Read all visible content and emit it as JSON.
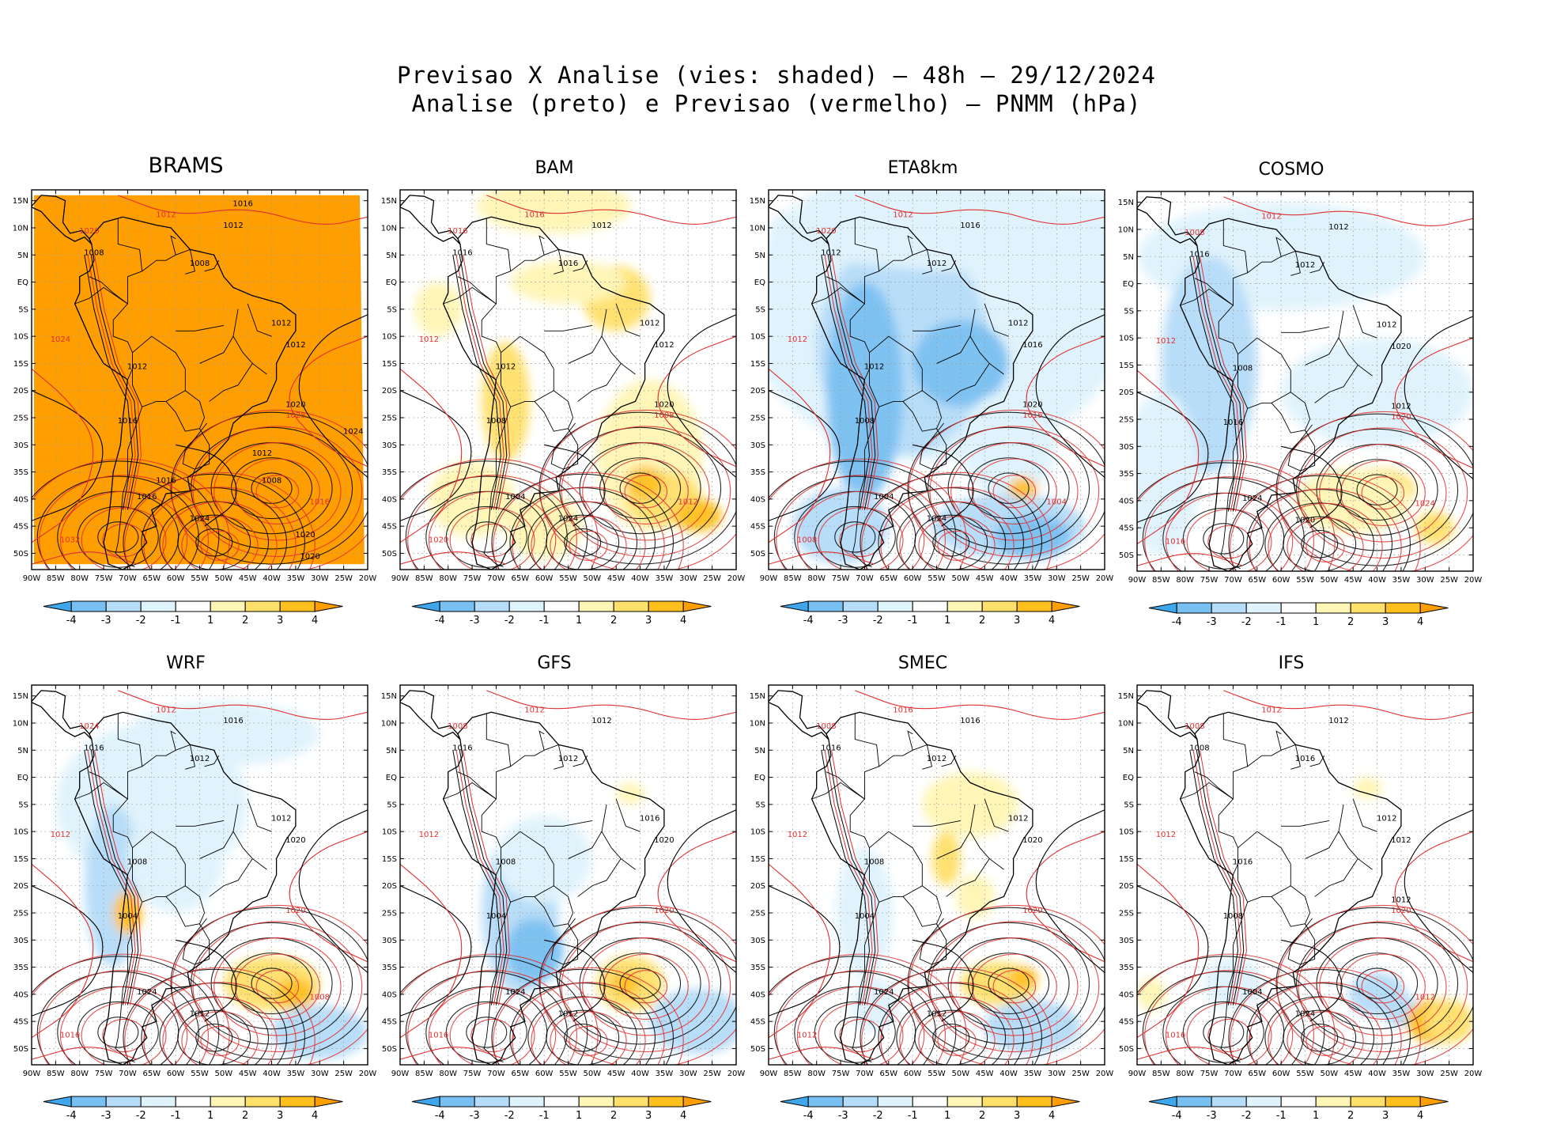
{
  "title": {
    "line1": "Previsao X Analise (vies: shaded) — 48h — 29/12/2024",
    "line2": "Analise (preto) e Previsao (vermelho) — PNMM (hPa)"
  },
  "lat_labels": [
    "15N",
    "10N",
    "5N",
    "EQ",
    "5S",
    "10S",
    "15S",
    "20S",
    "25S",
    "30S",
    "35S",
    "40S",
    "45S",
    "50S"
  ],
  "lon_labels": [
    "90W",
    "85W",
    "80W",
    "75W",
    "70W",
    "65W",
    "60W",
    "55W",
    "50W",
    "45W",
    "40W",
    "35W",
    "30W",
    "25W",
    "20W"
  ],
  "colorbar": {
    "labels": [
      "-4",
      "-3",
      "-2",
      "-1",
      "1",
      "2",
      "3",
      "4"
    ],
    "colors": [
      "#3fa6ec",
      "#78bff2",
      "#b5dcf8",
      "#dff3fc",
      "#ffffff",
      "#fff5b4",
      "#ffe06a",
      "#ffc01e",
      "#ff9e00"
    ]
  },
  "colors": {
    "land_outline": "#000000",
    "analysis_contour": "#000000",
    "forecast_contour": "#e03030",
    "grid": "#9a9a9a",
    "brams_fill": "#ff9e00"
  },
  "panels": [
    {
      "id": "brams",
      "name": "BRAMS",
      "labels_black": [
        "1012",
        "1012",
        "1008",
        "1008",
        "1012",
        "1012",
        "1016",
        "1016",
        "1024",
        "1020",
        "1012",
        "1008",
        "1016",
        "1020",
        "1024",
        "1020",
        "1016"
      ],
      "labels_red": [
        "1012",
        "1024",
        "1032",
        "1028",
        "1020",
        "1016"
      ]
    },
    {
      "id": "bam",
      "name": "BAM",
      "labels_black": [
        "1012",
        "1012",
        "1016",
        "1016",
        "1012",
        "1012",
        "1008",
        "1004",
        "1024",
        "1020"
      ],
      "labels_red": [
        "1016",
        "1012",
        "1020",
        "1008",
        "1016",
        "1012"
      ]
    },
    {
      "id": "eta8km",
      "name": "ETA8km",
      "labels_black": [
        "1016",
        "1012",
        "1012",
        "1012",
        "1016",
        "1012",
        "1008",
        "1004",
        "1024",
        "1020"
      ],
      "labels_red": [
        "1012",
        "1012",
        "1008",
        "1016",
        "1020",
        "1004"
      ]
    },
    {
      "id": "cosmo",
      "name": "COSMO",
      "labels_black": [
        "1012",
        "1012",
        "1012",
        "1016",
        "1020",
        "1008",
        "1016",
        "1024",
        "1020",
        "1012"
      ],
      "labels_red": [
        "1012",
        "1012",
        "1016",
        "1020",
        "1008",
        "1024"
      ]
    },
    {
      "id": "wrf",
      "name": "WRF",
      "labels_black": [
        "1016",
        "1012",
        "1012",
        "1016",
        "1020",
        "1008",
        "1004",
        "1024",
        "1012"
      ],
      "labels_red": [
        "1012",
        "1012",
        "1016",
        "1020",
        "1024",
        "1008"
      ]
    },
    {
      "id": "gfs",
      "name": "GFS",
      "labels_black": [
        "1012",
        "1016",
        "1012",
        "1016",
        "1020",
        "1008",
        "1004",
        "1024",
        "1012"
      ],
      "labels_red": [
        "1012",
        "1012",
        "1016",
        "1020",
        "1008"
      ]
    },
    {
      "id": "smec",
      "name": "SMEC",
      "labels_black": [
        "1016",
        "1012",
        "1012",
        "1016",
        "1020",
        "1008",
        "1004",
        "1024",
        "1012"
      ],
      "labels_red": [
        "1016",
        "1012",
        "1012",
        "1020",
        "1008"
      ]
    },
    {
      "id": "ifs",
      "name": "IFS",
      "labels_black": [
        "1012",
        "1012",
        "1016",
        "1008",
        "1012",
        "1016",
        "1008",
        "1004",
        "1024",
        "1012"
      ],
      "labels_red": [
        "1012",
        "1012",
        "1016",
        "1020",
        "1008",
        "1012"
      ]
    }
  ]
}
